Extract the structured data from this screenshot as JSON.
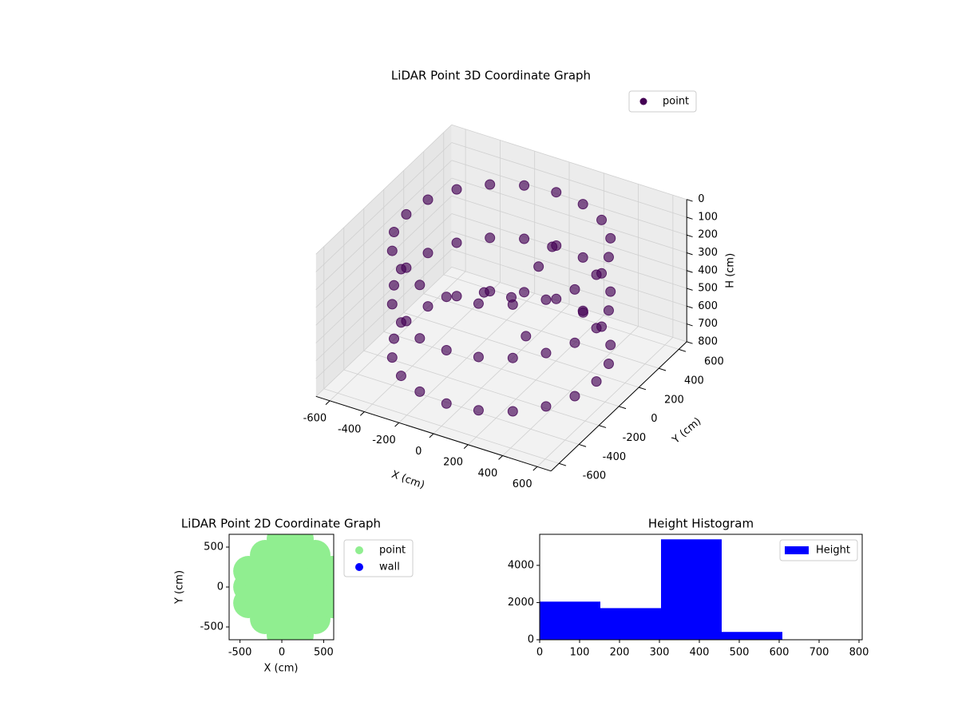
{
  "chart_data": [
    {
      "type": "scatter3d",
      "title": "LiDAR Point 3D Coordinate Graph",
      "xlabel": "X (cm)",
      "ylabel": "Y (cm)",
      "zlabel": "H (cm)",
      "xlim": [
        -680,
        680
      ],
      "ylim": [
        -680,
        680
      ],
      "zlim": [
        800,
        0
      ],
      "xticks": [
        -600,
        -400,
        -200,
        0,
        200,
        400,
        600
      ],
      "yticks": [
        -600,
        -400,
        -200,
        0,
        200,
        400,
        600
      ],
      "zticks": [
        0,
        100,
        200,
        300,
        400,
        500,
        600,
        700,
        800
      ],
      "legend": "upper right",
      "series": [
        {
          "name": "point",
          "color": "#440154",
          "x": [
            550,
            523,
            445,
            323,
            170,
            0,
            -170,
            -323,
            -445,
            -523,
            -550,
            -523,
            -445,
            -323,
            -170,
            0,
            170,
            323,
            445,
            523,
            550,
            523,
            445,
            323,
            170,
            0,
            -170,
            -323,
            -445,
            -523,
            -550,
            -523,
            -445,
            -323,
            -170,
            0,
            170,
            323,
            445,
            523,
            550,
            523,
            445,
            323,
            170,
            0,
            -170,
            -323,
            -445,
            -523,
            -550,
            -523,
            -445,
            -323,
            -170,
            0,
            170,
            323,
            445,
            523,
            100,
            0,
            200,
            -100,
            300,
            150
          ],
          "y": [
            0,
            170,
            323,
            445,
            523,
            550,
            523,
            445,
            323,
            170,
            0,
            -170,
            -323,
            -445,
            -523,
            -550,
            -523,
            -445,
            -323,
            -170,
            0,
            170,
            323,
            445,
            523,
            550,
            523,
            445,
            323,
            170,
            0,
            -170,
            -323,
            -445,
            -523,
            -550,
            -523,
            -445,
            -323,
            -170,
            0,
            170,
            323,
            445,
            523,
            550,
            523,
            445,
            323,
            170,
            0,
            -170,
            -323,
            -445,
            -523,
            -550,
            -523,
            -445,
            -323,
            -170,
            200,
            100,
            -100,
            0,
            300,
            250
          ],
          "z": [
            100,
            100,
            100,
            100,
            100,
            100,
            100,
            100,
            100,
            100,
            100,
            100,
            100,
            100,
            100,
            100,
            100,
            100,
            100,
            100,
            400,
            400,
            400,
            400,
            400,
            400,
            400,
            400,
            400,
            400,
            400,
            400,
            400,
            400,
            400,
            400,
            400,
            400,
            400,
            400,
            700,
            700,
            700,
            700,
            700,
            700,
            700,
            700,
            700,
            700,
            700,
            700,
            700,
            700,
            700,
            700,
            700,
            700,
            700,
            700,
            300,
            450,
            500,
            400,
            550,
            200
          ]
        }
      ]
    },
    {
      "type": "scatter",
      "title": "LiDAR Point 2D Coordinate Graph",
      "xlabel": "X (cm)",
      "ylabel": "Y (cm)",
      "xlim": [
        -630,
        620
      ],
      "ylim": [
        -660,
        660
      ],
      "xticks": [
        -500,
        0,
        500
      ],
      "yticks": [
        -500,
        0,
        500
      ],
      "legend": "outside right",
      "series": [
        {
          "name": "point",
          "color": "#90ee90",
          "x": [
            -400,
            -400,
            -400,
            -200,
            -200,
            -200,
            -200,
            -200,
            0,
            0,
            0,
            0,
            0,
            0,
            0,
            200,
            200,
            200,
            200,
            200,
            200,
            200,
            400,
            400,
            400,
            400,
            400,
            600,
            600,
            600
          ],
          "y": [
            -200,
            0,
            200,
            -400,
            -200,
            0,
            200,
            400,
            -600,
            -400,
            -200,
            0,
            200,
            400,
            600,
            -600,
            -400,
            -200,
            0,
            200,
            400,
            600,
            -400,
            -200,
            0,
            200,
            400,
            -200,
            0,
            200
          ]
        },
        {
          "name": "wall",
          "color": "#0000ff",
          "x": [],
          "y": []
        }
      ]
    },
    {
      "type": "histogram",
      "title": "Height Histogram",
      "bins": [
        0,
        152,
        304,
        456,
        608,
        760
      ],
      "values": [
        2050,
        1700,
        5400,
        420,
        20
      ],
      "color": "#0000ff",
      "series_name": "Height",
      "xlim": [
        0,
        808
      ],
      "ylim": [
        0,
        5670
      ],
      "xticks": [
        0,
        100,
        200,
        300,
        400,
        500,
        600,
        700,
        800
      ],
      "yticks": [
        0,
        2000,
        4000
      ],
      "legend": "upper right"
    }
  ]
}
